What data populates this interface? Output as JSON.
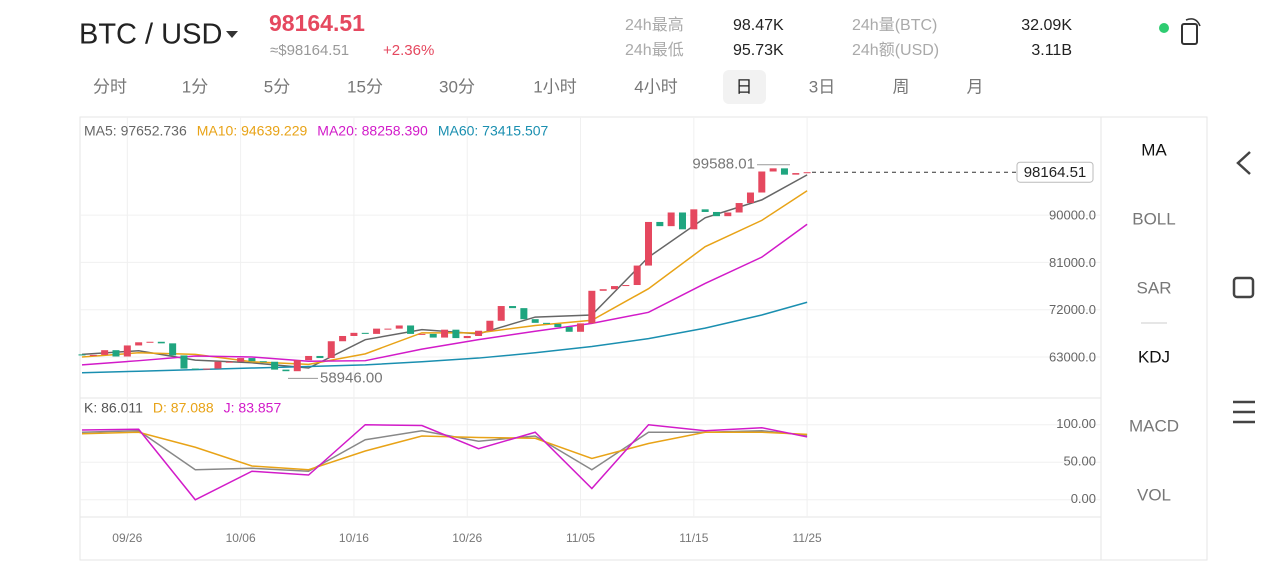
{
  "header": {
    "pair": "BTC / USD",
    "price": "98164.51",
    "approx": "≈$98164.51",
    "change": "+2.36%"
  },
  "stats": [
    {
      "label": "24h最高",
      "value": "98.47K"
    },
    {
      "label": "24h最低",
      "value": "95.73K"
    },
    {
      "label": "24h量(BTC)",
      "value": "32.09K"
    },
    {
      "label": "24h额(USD)",
      "value": "3.11B"
    }
  ],
  "tabs": [
    "分时",
    "1分",
    "5分",
    "15分",
    "30分",
    "1小时",
    "4小时",
    "日",
    "3日",
    "周",
    "月"
  ],
  "selected_tab": 7,
  "indicators": [
    "MA",
    "BOLL",
    "SAR",
    "KDJ",
    "MACD",
    "VOL"
  ],
  "chart_data": [
    {
      "type": "candlestick",
      "categories": [
        null,
        null,
        null,
        null,
        "09/26",
        null,
        null,
        null,
        null,
        null,
        null,
        null,
        null,
        null,
        "10/06",
        null,
        null,
        null,
        null,
        null,
        null,
        null,
        null,
        null,
        "10/16",
        null,
        null,
        null,
        null,
        null,
        null,
        null,
        null,
        null,
        "10/26",
        null,
        null,
        null,
        null,
        null,
        null,
        null,
        null,
        null,
        "11/05",
        null,
        null,
        null,
        null,
        null,
        null,
        null,
        null,
        null,
        "11/15",
        null,
        null,
        null,
        null,
        null,
        null,
        null,
        null,
        null,
        "11/25"
      ],
      "open": [
        63500,
        63300,
        63400,
        64300,
        63100,
        65200,
        65800,
        65900,
        65600,
        63300,
        60800,
        60600,
        60800,
        62100,
        62100,
        62800,
        62200,
        62100,
        60600,
        60300,
        62400,
        63200,
        62800,
        66000,
        67000,
        67600,
        67400,
        68400,
        68400,
        69000,
        67400,
        67400,
        66700,
        68200,
        66600,
        67000,
        68000,
        69900,
        72700,
        72300,
        70200,
        69500,
        69300,
        68700,
        67800,
        69400,
        75600,
        75900,
        76500,
        76700,
        80400,
        88700,
        87900,
        90500,
        87300,
        91100,
        90600,
        89800,
        90500,
        92300,
        94300,
        98300,
        98900,
        97700,
        98000
      ],
      "close": [
        63300,
        63400,
        64300,
        63100,
        65200,
        65800,
        65900,
        65600,
        63300,
        60800,
        60600,
        60800,
        62100,
        62100,
        62800,
        62200,
        62100,
        60600,
        60300,
        62400,
        63200,
        62800,
        66000,
        67000,
        67600,
        67400,
        68400,
        68400,
        69000,
        67400,
        67400,
        66700,
        68200,
        66600,
        67000,
        68000,
        69900,
        72700,
        72300,
        70200,
        69500,
        69300,
        68700,
        67800,
        69400,
        75600,
        75900,
        76500,
        76700,
        80400,
        88700,
        87900,
        90500,
        87300,
        91100,
        90600,
        89800,
        90500,
        92300,
        94300,
        98300,
        98900,
        97700,
        98000,
        98164.51
      ],
      "up_color": "#e5485f",
      "down_color": "#1fa57f",
      "ylim": [
        55200,
        108480
      ],
      "yticks": [
        {
          "value": 63000,
          "label": "63000.0"
        },
        {
          "value": 72000,
          "label": "72000.0"
        },
        {
          "value": 81000,
          "label": "81000.0"
        },
        {
          "value": 90000,
          "label": "90000.0"
        }
      ],
      "series": [
        {
          "name": "MA5: 97652.736",
          "color": "#666666",
          "x": [
            0,
            5,
            10,
            15,
            20,
            25,
            30,
            35,
            40,
            45,
            50,
            55,
            60,
            64
          ],
          "values": [
            63500,
            64200,
            62400,
            61900,
            60900,
            66300,
            68200,
            67400,
            70600,
            71000,
            82000,
            89500,
            92900,
            97652.736
          ]
        },
        {
          "name": "MA10: 94639.229",
          "color": "#e8a317",
          "x": [
            0,
            5,
            10,
            15,
            20,
            25,
            30,
            35,
            40,
            45,
            50,
            55,
            60,
            64
          ],
          "values": [
            63000,
            63800,
            63500,
            62100,
            61600,
            63600,
            67600,
            67600,
            69000,
            70000,
            76000,
            84000,
            89000,
            94639.229
          ]
        },
        {
          "name": "MA20: 88258.390",
          "color": "#d21bc9",
          "x": [
            0,
            5,
            10,
            15,
            20,
            25,
            30,
            35,
            40,
            45,
            50,
            55,
            60,
            64
          ],
          "values": [
            61500,
            62300,
            63200,
            63000,
            62200,
            62300,
            64500,
            66300,
            67900,
            69400,
            71500,
            77000,
            82000,
            88258.39
          ]
        },
        {
          "name": "MA60: 73415.507",
          "color": "#1a8fb0",
          "x": [
            0,
            5,
            10,
            15,
            20,
            25,
            30,
            35,
            40,
            45,
            50,
            55,
            60,
            64
          ],
          "values": [
            60000,
            60300,
            60600,
            60900,
            61200,
            61500,
            62100,
            62800,
            63800,
            65000,
            66500,
            68500,
            71000,
            73415.507
          ]
        }
      ],
      "high_mark": {
        "value": 99588.01,
        "label": "99588.01"
      },
      "low_mark": {
        "value": 58946,
        "label": "58946.00"
      },
      "last_price": 98164.51
    },
    {
      "type": "line",
      "ylim": [
        -23,
        133
      ],
      "yticks": [
        {
          "value": 100,
          "label": "100.00"
        },
        {
          "value": 50,
          "label": "50.00"
        },
        {
          "value": 0,
          "label": "0.00"
        }
      ],
      "series": [
        {
          "name": "K: 86.011",
          "color": "#888888",
          "x": [
            0,
            5,
            10,
            15,
            20,
            25,
            30,
            35,
            40,
            45,
            50,
            55,
            60,
            64
          ],
          "values": [
            90,
            92,
            40,
            42,
            38,
            80,
            92,
            78,
            85,
            40,
            90,
            90,
            92,
            86.011
          ]
        },
        {
          "name": "D: 87.088",
          "color": "#e8a317",
          "x": [
            0,
            5,
            10,
            15,
            20,
            25,
            30,
            35,
            40,
            45,
            50,
            55,
            60,
            64
          ],
          "values": [
            88,
            90,
            70,
            45,
            40,
            65,
            85,
            83,
            82,
            55,
            75,
            90,
            90,
            87.088
          ]
        },
        {
          "name": "J: 83.857",
          "color": "#d21bc9",
          "x": [
            0,
            5,
            10,
            15,
            20,
            25,
            30,
            35,
            40,
            45,
            50,
            55,
            60,
            64
          ],
          "values": [
            93,
            94,
            0,
            38,
            33,
            100,
            99,
            68,
            90,
            15,
            100,
            92,
            96,
            83.857
          ]
        }
      ]
    }
  ]
}
